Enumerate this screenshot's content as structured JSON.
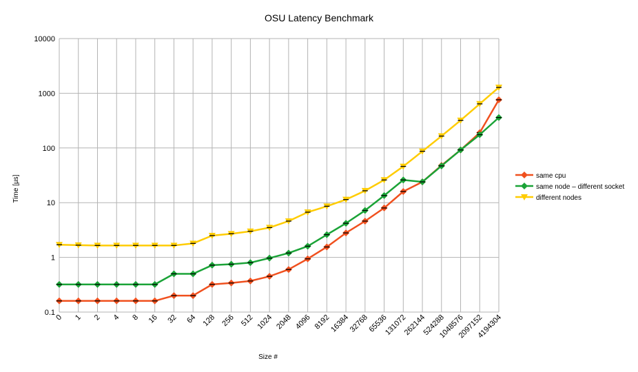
{
  "chart_data": {
    "type": "line",
    "title": "OSU Latency Benchmark",
    "xlabel": "Size #",
    "ylabel": "Time [µs]",
    "y_scale": "log",
    "ylim": [
      0.1,
      10000
    ],
    "y_ticks": [
      "0.1",
      "1",
      "10",
      "100",
      "1000",
      "10000"
    ],
    "y_tick_values": [
      0.1,
      1,
      10,
      100,
      1000,
      10000
    ],
    "categories": [
      "0",
      "1",
      "2",
      "4",
      "8",
      "16",
      "32",
      "64",
      "128",
      "256",
      "512",
      "1024",
      "2048",
      "4096",
      "8192",
      "16384",
      "32768",
      "65536",
      "131072",
      "262144",
      "524288",
      "1048576",
      "2097152",
      "4194304"
    ],
    "grid": true,
    "legend_position": "right",
    "series": [
      {
        "name": "same cpu",
        "color": "#f0501e",
        "marker": "diamond",
        "values": [
          0.16,
          0.16,
          0.16,
          0.16,
          0.16,
          0.16,
          0.2,
          0.2,
          0.32,
          0.34,
          0.37,
          0.45,
          0.6,
          0.94,
          1.55,
          2.8,
          4.6,
          8.0,
          16.0,
          24.0,
          48.0,
          92.0,
          190.0,
          760.0
        ]
      },
      {
        "name": "same node – different socket",
        "color": "#1aa337",
        "marker": "diamond",
        "values": [
          0.32,
          0.32,
          0.32,
          0.32,
          0.32,
          0.32,
          0.5,
          0.5,
          0.72,
          0.75,
          0.8,
          0.97,
          1.2,
          1.6,
          2.6,
          4.2,
          7.2,
          13.5,
          26.0,
          24.0,
          47.0,
          92.0,
          175.0,
          360.0
        ]
      },
      {
        "name": "different nodes",
        "color": "#ffcc00",
        "marker": "triangle",
        "values": [
          1.7,
          1.67,
          1.65,
          1.65,
          1.65,
          1.65,
          1.65,
          1.8,
          2.5,
          2.7,
          3.0,
          3.5,
          4.6,
          6.7,
          8.6,
          11.4,
          16.5,
          26.0,
          46.0,
          87.0,
          165.0,
          320.0,
          640.0,
          1280.0
        ]
      }
    ]
  }
}
